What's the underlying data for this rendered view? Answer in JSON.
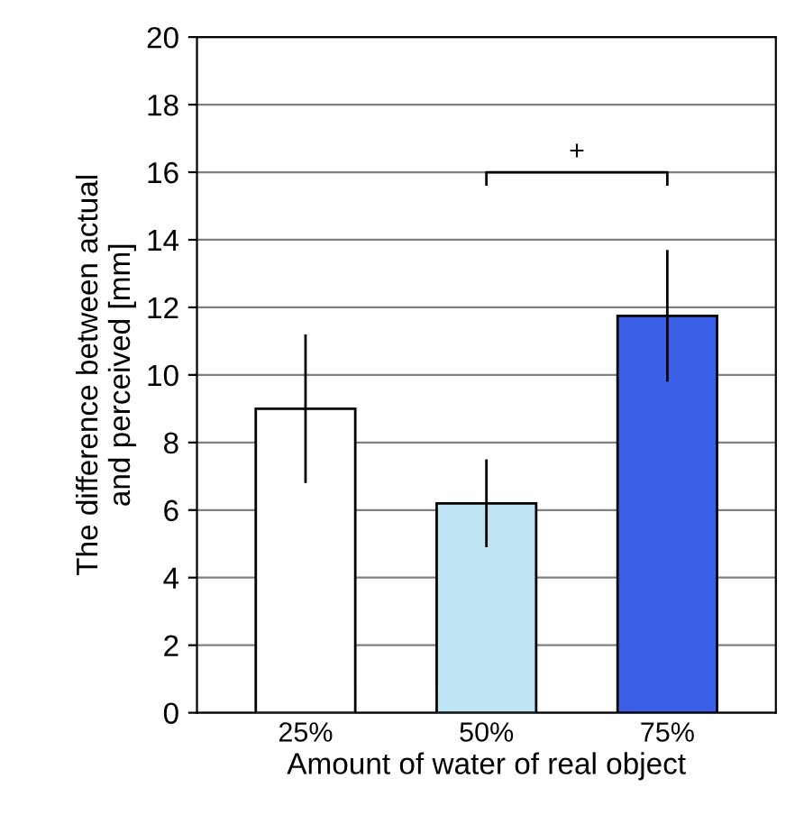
{
  "chart_data": {
    "type": "bar",
    "categories": [
      "25%",
      "50%",
      "75%"
    ],
    "values": [
      9.0,
      6.2,
      11.75
    ],
    "colors": [
      "#ffffff",
      "#bfe4f4",
      "#3b5fe6"
    ],
    "errors": [
      2.2,
      1.3,
      1.95
    ],
    "ylim": [
      0,
      20
    ],
    "yticks": [
      0,
      2,
      4,
      6,
      8,
      10,
      12,
      14,
      16,
      18,
      20
    ],
    "grid": "y",
    "ylabel": "The difference between actual\nand perceived [mm]",
    "xlabel": "Amount of water of real object",
    "annotations": [
      "+"
    ]
  }
}
